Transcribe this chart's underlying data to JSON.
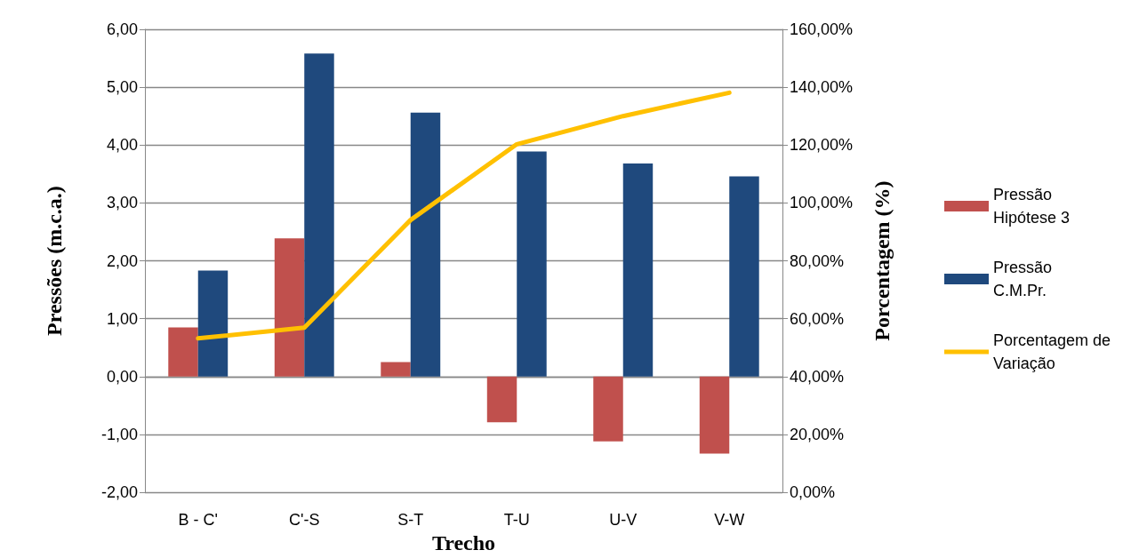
{
  "chart_data": {
    "type": "bar",
    "categories": [
      "B - C'",
      "C'-S",
      "S-T",
      "T-U",
      "U-V",
      "V-W"
    ],
    "series": [
      {
        "name": "Pressão Hipótese 3",
        "color": "#c0504d",
        "values": [
          0.85,
          2.39,
          0.25,
          -0.79,
          -1.12,
          -1.33
        ]
      },
      {
        "name": "Pressão C.M.Pr.",
        "color": "#1f497d",
        "values": [
          1.83,
          5.58,
          4.56,
          3.89,
          3.68,
          3.46
        ]
      },
      {
        "name": "Porcentagem de Variação",
        "type": "line",
        "axis": "y2",
        "color": "#ffc000",
        "marker": "none",
        "values": [
          53.2,
          56.9,
          94.1,
          120.3,
          130.0,
          138.1
        ]
      }
    ],
    "xlabel": "Trecho",
    "ylabel": "Pressões (m.c.a.)",
    "y2label": "Porcentagem (%)",
    "ylim": [
      -2,
      6
    ],
    "yticks": [
      {
        "value": -2,
        "label": "-2,00"
      },
      {
        "value": -1,
        "label": "-1,00"
      },
      {
        "value": 0,
        "label": "0,00"
      },
      {
        "value": 1,
        "label": "1,00"
      },
      {
        "value": 2,
        "label": "2,00"
      },
      {
        "value": 3,
        "label": "3,00"
      },
      {
        "value": 4,
        "label": "4,00"
      },
      {
        "value": 5,
        "label": "5,00"
      },
      {
        "value": 6,
        "label": "6,00"
      }
    ],
    "y2lim": [
      0,
      160
    ],
    "y2ticks": [
      {
        "value": 0,
        "label": "0,00%"
      },
      {
        "value": 20,
        "label": "20,00%"
      },
      {
        "value": 40,
        "label": "40,00%"
      },
      {
        "value": 60,
        "label": "60,00%"
      },
      {
        "value": 80,
        "label": "80,00%"
      },
      {
        "value": 100,
        "label": "100,00%"
      },
      {
        "value": 120,
        "label": "120,00%"
      },
      {
        "value": 140,
        "label": "140,00%"
      },
      {
        "value": 160,
        "label": "160,00%"
      }
    ],
    "grid": "y",
    "legend": "right",
    "line_style": "solid"
  }
}
